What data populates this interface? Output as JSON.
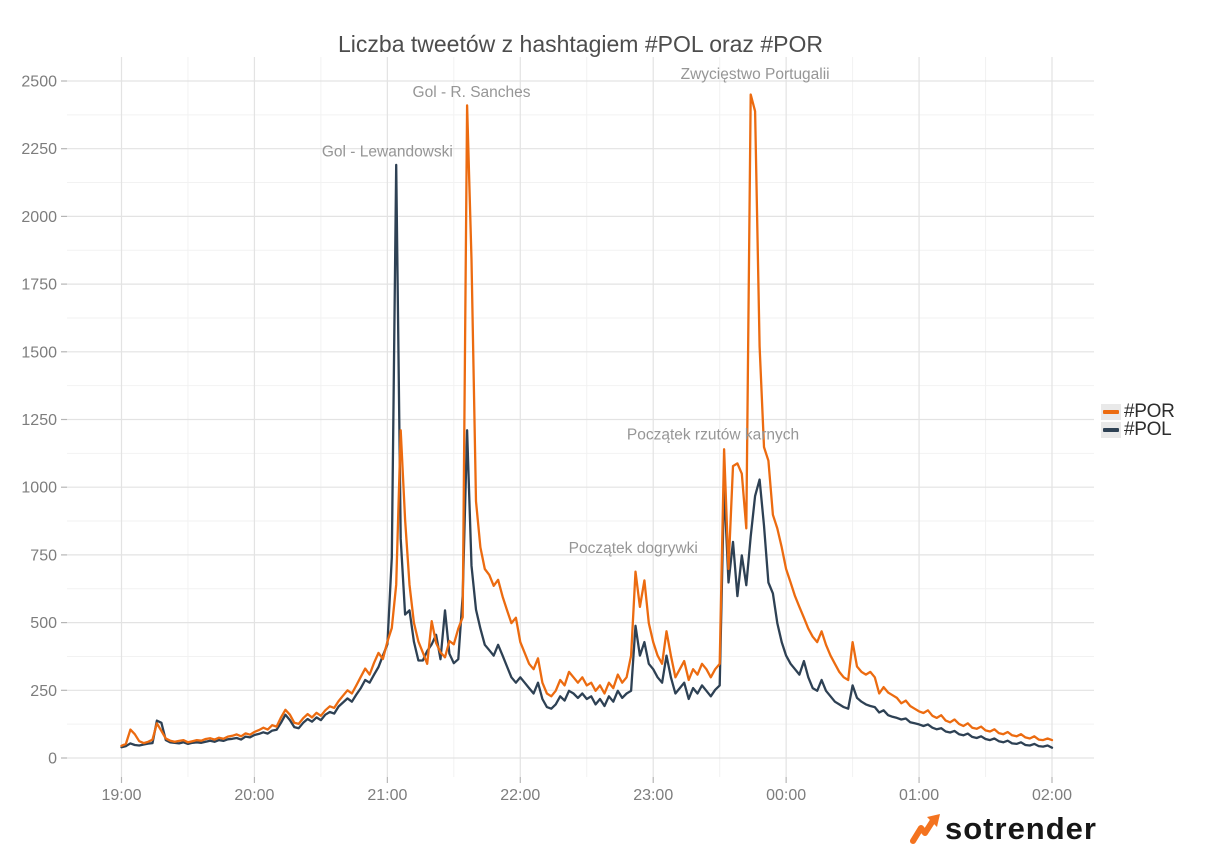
{
  "title": "Liczba tweetów z hashtagiem #POL oraz #POR",
  "branding": {
    "logo_text": "sotrender",
    "logo_text_color": "#171717",
    "icon_color": "#f4731f"
  },
  "legend": {
    "position": "right",
    "items": [
      {
        "label": "#POR",
        "color": "#ec6b10"
      },
      {
        "label": "#POL",
        "color": "#2e4154"
      }
    ]
  },
  "colors": {
    "por_line": "#ec6b10",
    "pol_line": "#2e4154",
    "major_grid": "#e3e3e3",
    "minor_grid": "#f2f2f2",
    "tick_mark": "#b5b5b5",
    "tick_label": "#7d7d7d",
    "title_text": "#4d4d4d",
    "annotation_text": "#969696"
  },
  "chart_data": {
    "type": "line",
    "title": "Liczba tweetów z hashtagiem #POL oraz #POR",
    "xlabel": "",
    "ylabel": "",
    "ylim": [
      0,
      2500
    ],
    "grid": "major+minor",
    "legend_position": "right",
    "x_unit": "minutes after 19:00",
    "x_ticks": [
      {
        "label": "19:00",
        "minute": 0
      },
      {
        "label": "20:00",
        "minute": 60
      },
      {
        "label": "21:00",
        "minute": 120
      },
      {
        "label": "22:00",
        "minute": 180
      },
      {
        "label": "23:00",
        "minute": 240
      },
      {
        "label": "00:00",
        "minute": 300
      },
      {
        "label": "01:00",
        "minute": 360
      },
      {
        "label": "02:00",
        "minute": 420
      }
    ],
    "x_minor_minutes": [
      30,
      90,
      150,
      210,
      270,
      330,
      390
    ],
    "y_ticks": [
      0,
      250,
      500,
      750,
      1000,
      1250,
      1500,
      1750,
      2000,
      2250,
      2500
    ],
    "y_minor": [
      125,
      375,
      625,
      875,
      1125,
      1375,
      1625,
      1875,
      2125,
      2375
    ],
    "annotations": [
      {
        "label": "Gol - Lewandowski",
        "minute": 120,
        "value": 2240
      },
      {
        "label": "Gol - R. Sanches",
        "minute": 158,
        "value": 2460
      },
      {
        "label": "Początek dogrywki",
        "minute": 231,
        "value": 775
      },
      {
        "label": "Początek rzutów karnych",
        "minute": 267,
        "value": 1195
      },
      {
        "label": "Zwycięstwo Portugalii",
        "minute": 286,
        "value": 2525
      }
    ],
    "series": [
      {
        "name": "#POR",
        "color": "#ec6b10",
        "start_minute": 0,
        "step_minutes": 2,
        "values": [
          45,
          52,
          105,
          88,
          62,
          55,
          60,
          68,
          128,
          100,
          72,
          64,
          60,
          63,
          66,
          58,
          62,
          66,
          64,
          70,
          73,
          68,
          75,
          71,
          79,
          82,
          87,
          80,
          91,
          86,
          96,
          103,
          112,
          105,
          121,
          116,
          150,
          178,
          160,
          130,
          126,
          147,
          162,
          150,
          167,
          156,
          176,
          191,
          185,
          210,
          230,
          250,
          238,
          268,
          300,
          330,
          308,
          352,
          388,
          366,
          430,
          480,
          640,
          1210,
          880,
          640,
          500,
          430,
          390,
          348,
          505,
          425,
          390,
          372,
          432,
          420,
          478,
          520,
          2410,
          1840,
          948,
          778,
          698,
          676,
          636,
          658,
          596,
          546,
          498,
          518,
          428,
          388,
          348,
          328,
          368,
          278,
          238,
          228,
          248,
          288,
          268,
          318,
          298,
          278,
          298,
          268,
          278,
          248,
          268,
          238,
          278,
          258,
          308,
          278,
          298,
          378,
          688,
          558,
          656,
          498,
          428,
          378,
          348,
          468,
          378,
          298,
          328,
          358,
          288,
          328,
          308,
          348,
          328,
          298,
          328,
          348,
          1140,
          698,
          1078,
          1088,
          1050,
          848,
          2450,
          2388,
          1520,
          1148,
          1098,
          898,
          848,
          778,
          698,
          648,
          598,
          558,
          518,
          478,
          448,
          428,
          468,
          418,
          378,
          348,
          318,
          298,
          288,
          428,
          338,
          318,
          308,
          318,
          298,
          238,
          262,
          242,
          232,
          222,
          202,
          212,
          192,
          182,
          172,
          166,
          176,
          156,
          148,
          158,
          138,
          132,
          142,
          126,
          118,
          128,
          112,
          108,
          116,
          102,
          98,
          106,
          92,
          88,
          96,
          84,
          80,
          88,
          76,
          72,
          80,
          68,
          66,
          72,
          66
        ]
      },
      {
        "name": "#POL",
        "color": "#2e4154",
        "start_minute": 0,
        "step_minutes": 2,
        "values": [
          40,
          44,
          54,
          48,
          46,
          50,
          53,
          55,
          138,
          130,
          66,
          58,
          56,
          54,
          58,
          52,
          56,
          58,
          56,
          60,
          64,
          60,
          66,
          63,
          69,
          71,
          74,
          68,
          79,
          76,
          85,
          89,
          95,
          90,
          101,
          104,
          130,
          160,
          140,
          114,
          110,
          130,
          144,
          134,
          150,
          140,
          160,
          170,
          164,
          190,
          205,
          220,
          208,
          234,
          258,
          288,
          278,
          308,
          336,
          378,
          420,
          740,
          2190,
          810,
          530,
          545,
          430,
          360,
          360,
          395,
          420,
          455,
          365,
          545,
          385,
          350,
          365,
          600,
          1210,
          710,
          548,
          478,
          418,
          398,
          378,
          418,
          378,
          338,
          298,
          278,
          298,
          278,
          258,
          238,
          278,
          218,
          188,
          182,
          198,
          228,
          212,
          248,
          238,
          222,
          238,
          218,
          228,
          198,
          218,
          192,
          228,
          208,
          248,
          222,
          238,
          248,
          488,
          378,
          428,
          348,
          328,
          298,
          278,
          378,
          298,
          238,
          258,
          278,
          218,
          258,
          238,
          268,
          248,
          228,
          252,
          268,
          1010,
          648,
          798,
          598,
          748,
          638,
          818,
          968,
          1028,
          858,
          648,
          608,
          498,
          428,
          378,
          348,
          328,
          308,
          358,
          298,
          258,
          248,
          288,
          248,
          228,
          208,
          198,
          188,
          182,
          268,
          222,
          208,
          198,
          192,
          188,
          168,
          176,
          158,
          152,
          148,
          142,
          146,
          132,
          128,
          124,
          118,
          124,
          112,
          106,
          110,
          98,
          94,
          100,
          88,
          84,
          90,
          78,
          74,
          80,
          70,
          66,
          72,
          62,
          58,
          64,
          54,
          52,
          58,
          48,
          46,
          52,
          44,
          42,
          46,
          38
        ]
      }
    ]
  }
}
